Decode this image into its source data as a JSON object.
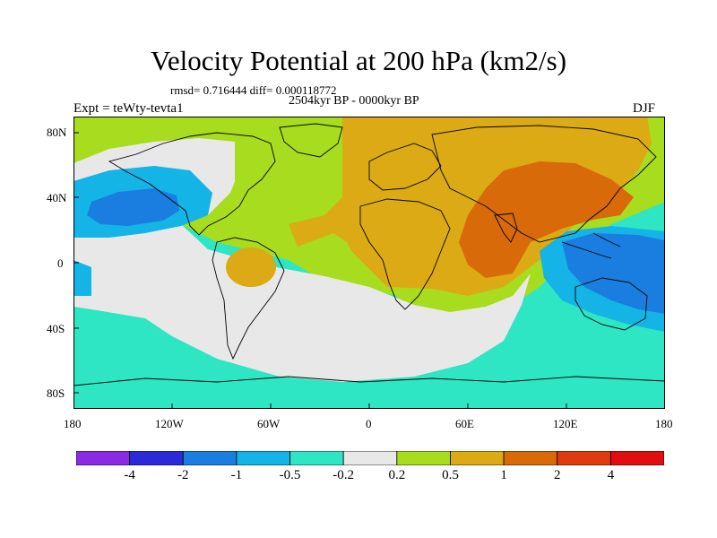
{
  "figure": {
    "title": "Velocity Potential at 200 hPa (km2/s)",
    "stats": "rmsd= 0.716444 diff= 0.000118772",
    "period": "2504kyr BP - 0000kyr BP",
    "experiment": "Expt = teWty-tevta1",
    "season": "DJF"
  },
  "map": {
    "projection": "cylindrical-equidistant",
    "lat_labels": [
      "80N",
      "40N",
      "0",
      "40S",
      "80S"
    ],
    "lon_labels": [
      "180",
      "120W",
      "60W",
      "0",
      "60E",
      "120E",
      "180"
    ]
  },
  "colorbar": {
    "colors": [
      "#8a2be2",
      "#2a2ad8",
      "#1a7ee0",
      "#14b4e6",
      "#2ee6c4",
      "#e8e8e8",
      "#a8dc1e",
      "#dcaa14",
      "#d86a0a",
      "#e03a10",
      "#e00e0e"
    ],
    "labels": [
      "-4",
      "-2",
      "-1",
      "-0.5",
      "-0.2",
      "0.2",
      "0.5",
      "1",
      "2",
      "4"
    ]
  }
}
